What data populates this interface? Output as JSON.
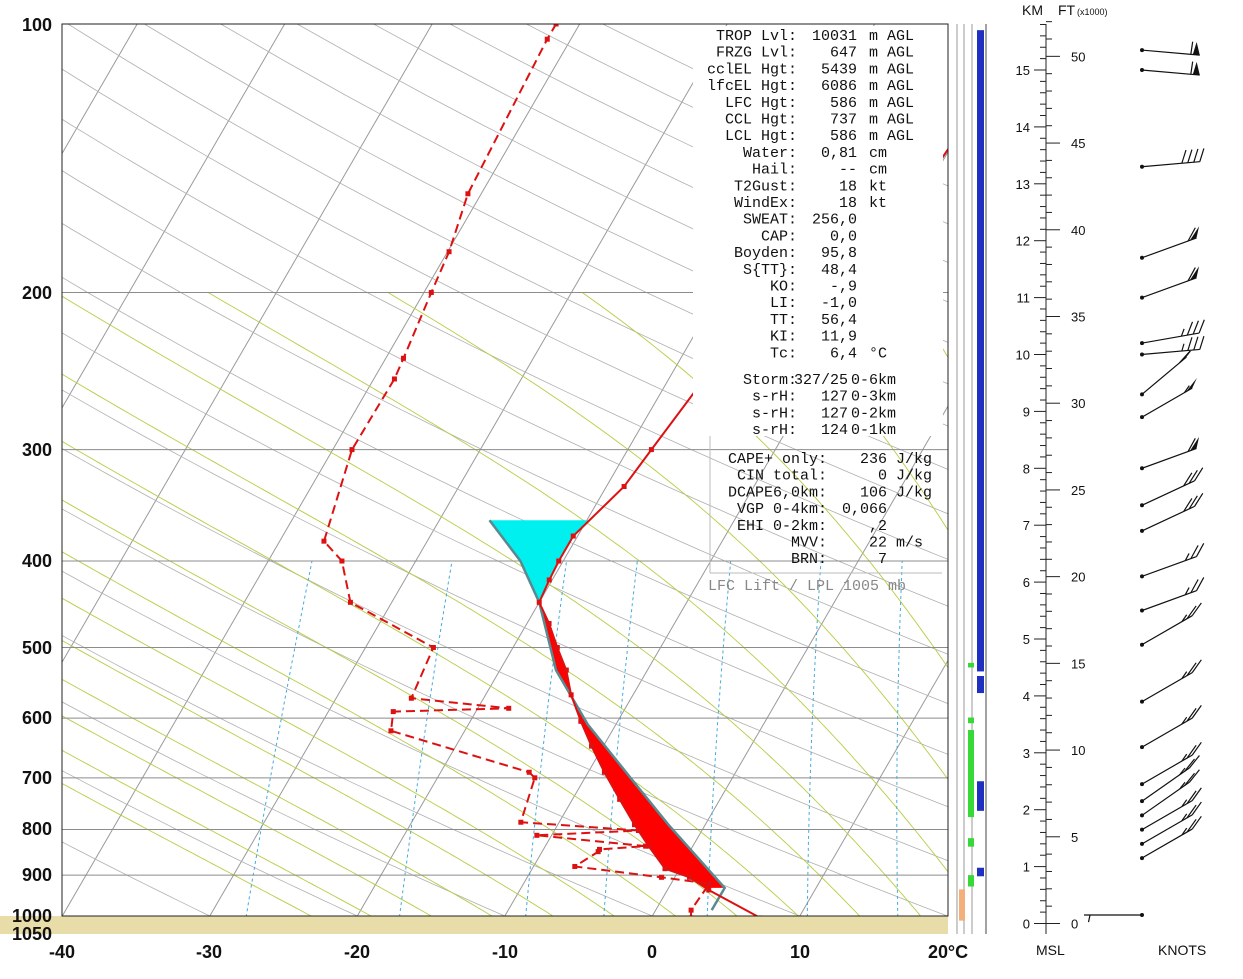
{
  "chart_data": {
    "type": "line",
    "title": "",
    "xlabel": "°C",
    "ylabel": "",
    "pressure_ticks": [
      "100",
      "200",
      "300",
      "400",
      "500",
      "600",
      "700",
      "800",
      "900",
      "1000",
      "1050"
    ],
    "temp_ticks": [
      "-40",
      "-30",
      "-20",
      "-10",
      "0",
      "10",
      "20"
    ],
    "xlim": [
      -40,
      20
    ],
    "ylim": [
      1050,
      100
    ],
    "colors": {
      "temperature": "#dd1111",
      "dewpoint": "#dd1111",
      "parcel": "#5a8a90",
      "cape": "#ff0000",
      "cin": "#00f0f0",
      "dry_adiabat": "#aaaaaa",
      "moist_adiabat": "#b8cc44",
      "mixing_ratio": "#44aadd",
      "ground": "#e8dca8",
      "bar_blue": "#1f2fc0",
      "bar_green": "#38d838",
      "bar_orange": "#f4b07a"
    },
    "series": [
      {
        "name": "",
        "points": [
          [
            7.4,
            1005
          ],
          [
            2.8,
            935
          ],
          [
            1,
            905
          ],
          [
            -1,
            885
          ],
          [
            -3,
            835
          ],
          [
            -4.8,
            790
          ],
          [
            -6.8,
            740
          ],
          [
            -8.9,
            690
          ],
          [
            -10.8,
            645
          ],
          [
            -12.5,
            605
          ],
          [
            -14.2,
            565
          ],
          [
            -15.5,
            530
          ],
          [
            -17,
            500
          ],
          [
            -18.5,
            470
          ],
          [
            -20,
            445
          ],
          [
            -20.2,
            420
          ],
          [
            -20.3,
            400
          ],
          [
            -20.3,
            375
          ],
          [
            -18.8,
            330
          ],
          [
            -18.4,
            300
          ],
          [
            -17.6,
            250
          ],
          [
            -16.8,
            237
          ],
          [
            -14.2,
            200
          ],
          [
            -11.3,
            179
          ],
          [
            -10.4,
            156
          ],
          [
            -9.4,
            104
          ],
          [
            -9.2,
            100
          ]
        ]
      },
      {
        "name": "",
        "points": [
          [
            2.7,
            1005
          ],
          [
            2.4,
            985
          ],
          [
            2.6,
            920
          ],
          [
            -0.9,
            905
          ],
          [
            -7.2,
            880
          ],
          [
            -6.2,
            847
          ],
          [
            -6.2,
            842
          ],
          [
            -3.2,
            835
          ],
          [
            -11,
            812
          ],
          [
            -4.3,
            802
          ],
          [
            -12.6,
            785
          ],
          [
            -13.4,
            700
          ],
          [
            -14,
            690
          ],
          [
            -25,
            620
          ],
          [
            -25.6,
            590
          ],
          [
            -17.9,
            585
          ],
          [
            -24.9,
            570
          ],
          [
            -25.4,
            500
          ],
          [
            -32.8,
            445
          ],
          [
            -35,
            400
          ],
          [
            -37,
            380
          ],
          [
            -38.7,
            300
          ],
          [
            -38.6,
            250
          ],
          [
            -38.8,
            237
          ],
          [
            -39.5,
            200
          ],
          [
            -39.9,
            180
          ],
          [
            -40.9,
            155
          ],
          [
            -41.6,
            104
          ],
          [
            -41.6,
            100
          ]
        ]
      },
      {
        "name": "",
        "points": [
          [
            3.8,
            985
          ],
          [
            3.8,
            930
          ],
          [
            -2.5,
            790
          ],
          [
            -6.4,
            710
          ],
          [
            -11.9,
            610
          ],
          [
            -16.2,
            530
          ],
          [
            -20,
            445
          ],
          [
            -22.9,
            400
          ],
          [
            -26.6,
            360
          ]
        ]
      }
    ],
    "annotation": "LFC Lift / LPL 1005 mb",
    "height_axis": {
      "km_label": "KM",
      "ft_label": "FT",
      "ft_unit": "(x1000)",
      "km_ticks": [
        "0",
        "1",
        "2",
        "3",
        "4",
        "5",
        "6",
        "7",
        "8",
        "9",
        "10",
        "11",
        "12",
        "13",
        "14",
        "15"
      ],
      "ft_ticks": [
        "0",
        "5",
        "10",
        "15",
        "20",
        "25",
        "30",
        "35",
        "40",
        "45",
        "50"
      ],
      "bottom_left": "MSL",
      "bottom_right": "KNOTS"
    },
    "wind_barbs_km": [
      {
        "km": 0.15,
        "dir": 90,
        "kt": 5
      },
      {
        "km": 1.15,
        "dir": 300,
        "kt": 25
      },
      {
        "km": 1.4,
        "dir": 300,
        "kt": 25
      },
      {
        "km": 1.65,
        "dir": 300,
        "kt": 25
      },
      {
        "km": 1.9,
        "dir": 305,
        "kt": 25
      },
      {
        "km": 2.15,
        "dir": 305,
        "kt": 25
      },
      {
        "km": 2.45,
        "dir": 300,
        "kt": 25
      },
      {
        "km": 3.1,
        "dir": 300,
        "kt": 25
      },
      {
        "km": 3.9,
        "dir": 300,
        "kt": 25
      },
      {
        "km": 4.9,
        "dir": 300,
        "kt": 25
      },
      {
        "km": 5.5,
        "dir": 290,
        "kt": 25
      },
      {
        "km": 6.1,
        "dir": 290,
        "kt": 25
      },
      {
        "km": 6.9,
        "dir": 295,
        "kt": 30
      },
      {
        "km": 7.35,
        "dir": 295,
        "kt": 30
      },
      {
        "km": 8.0,
        "dir": 290,
        "kt": 60
      },
      {
        "km": 8.9,
        "dir": 300,
        "kt": 55
      },
      {
        "km": 9.3,
        "dir": 310,
        "kt": 60
      },
      {
        "km": 10.0,
        "dir": 275,
        "kt": 35
      },
      {
        "km": 10.2,
        "dir": 280,
        "kt": 35
      },
      {
        "km": 11.0,
        "dir": 290,
        "kt": 60
      },
      {
        "km": 11.7,
        "dir": 290,
        "kt": 60
      },
      {
        "km": 13.3,
        "dir": 275,
        "kt": 40
      },
      {
        "km": 15.0,
        "dir": 265,
        "kt": 60
      },
      {
        "km": 15.35,
        "dir": 265,
        "kt": 60
      }
    ]
  },
  "indices_upper": [
    {
      "label": "TROP Lvl:",
      "value": "10031",
      "unit": "m AGL"
    },
    {
      "label": "FRZG Lvl:",
      "value": "647",
      "unit": "m AGL"
    },
    {
      "label": "cclEL Hgt:",
      "value": "5439",
      "unit": "m AGL"
    },
    {
      "label": "lfcEL Hgt:",
      "value": "6086",
      "unit": "m AGL"
    },
    {
      "label": "LFC Hgt:",
      "value": "586",
      "unit": "m AGL"
    },
    {
      "label": "CCL Hgt:",
      "value": "737",
      "unit": "m AGL"
    },
    {
      "label": "LCL Hgt:",
      "value": "586",
      "unit": "m AGL"
    },
    {
      "label": "Water:",
      "value": "0,81",
      "unit": "cm"
    },
    {
      "label": "Hail:",
      "value": "--",
      "unit": "cm"
    },
    {
      "label": "T2Gust:",
      "value": "18",
      "unit": "kt"
    },
    {
      "label": "WindEx:",
      "value": "18",
      "unit": "kt"
    },
    {
      "label": "SWEAT:",
      "value": "256,0",
      "unit": ""
    },
    {
      "label": "CAP:",
      "value": "0,0",
      "unit": ""
    },
    {
      "label": "Boyden:",
      "value": "95,8",
      "unit": ""
    },
    {
      "label": "S{TT}:",
      "value": "48,4",
      "unit": ""
    },
    {
      "label": "KO:",
      "value": "-,9",
      "unit": ""
    },
    {
      "label": "LI:",
      "value": "-1,0",
      "unit": ""
    },
    {
      "label": "TT:",
      "value": "56,4",
      "unit": ""
    },
    {
      "label": "KI:",
      "value": "11,9",
      "unit": ""
    },
    {
      "label": "Tc:",
      "value": "6,4",
      "unit": "°C"
    }
  ],
  "indices_storm": [
    {
      "label": "Storm:",
      "value": "327/25",
      "unit": "0-6km"
    },
    {
      "label": "s-rH:",
      "value": "127",
      "unit": "0-3km"
    },
    {
      "label": "s-rH:",
      "value": "127",
      "unit": "0-2km"
    },
    {
      "label": "s-rH:",
      "value": "124",
      "unit": "0-1km"
    }
  ],
  "indices_parcel": [
    {
      "label": "CAPE+ only:",
      "value": "236",
      "unit": "J/kg"
    },
    {
      "label": "CIN total:",
      "value": "0",
      "unit": "J/kg"
    },
    {
      "label": "DCAPE6,0km:",
      "value": "106",
      "unit": "J/kg"
    },
    {
      "label": "VGP 0-4km:",
      "value": "0,066",
      "unit": ""
    },
    {
      "label": "EHI 0-2km:",
      "value": ",2",
      "unit": ""
    },
    {
      "label": "MVV:",
      "value": "22",
      "unit": "m/s"
    },
    {
      "label": "BRN:",
      "value": "7",
      "unit": ""
    }
  ]
}
